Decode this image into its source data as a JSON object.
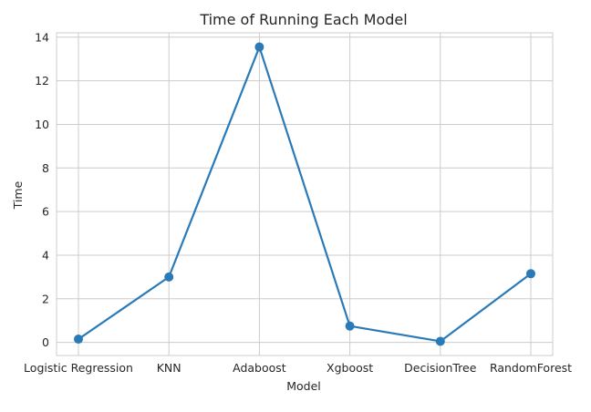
{
  "chart_data": {
    "type": "line",
    "title": "Time of Running Each Model",
    "xlabel": "Model",
    "ylabel": "Time",
    "categories": [
      "Logistic Regression",
      "KNN",
      "Adaboost",
      "Xgboost",
      "DecisionTree",
      "RandomForest"
    ],
    "values": [
      0.15,
      3.0,
      13.55,
      0.75,
      0.05,
      3.15
    ],
    "yticks": [
      0,
      2,
      4,
      6,
      8,
      10,
      12,
      14
    ],
    "ylim": [
      -0.6,
      14.2
    ],
    "grid": true,
    "line_color": "#2a7ab8"
  }
}
